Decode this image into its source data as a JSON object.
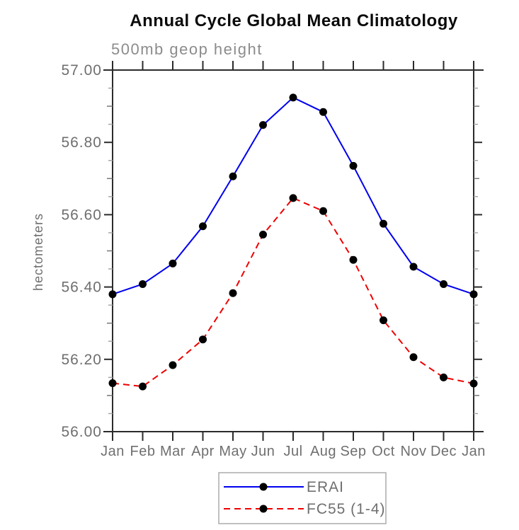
{
  "chart_data": {
    "type": "line",
    "title": "Annual Cycle Global Mean Climatology",
    "subtitle": "500mb geop height",
    "ylabel": "hectometers",
    "xlabel": "",
    "x_tick_labels": [
      "Jan",
      "Feb",
      "Mar",
      "Apr",
      "May",
      "Jun",
      "Jul",
      "Aug",
      "Sep",
      "Oct",
      "Nov",
      "Dec",
      "Jan"
    ],
    "y_ticks": [
      56.0,
      56.2,
      56.4,
      56.6,
      56.8,
      57.0
    ],
    "y_tick_labels": [
      "56.00",
      "56.20",
      "56.40",
      "56.60",
      "56.80",
      "57.00"
    ],
    "ylim": [
      56.0,
      57.0
    ],
    "y_minor_step": 0.05,
    "grid": false,
    "legend_position": "bottom-center",
    "axis_color": "#2b2b2b",
    "minor_tick_color": "#a6a6a6",
    "mid_minor_tick_color": "#777777",
    "legend_border_color": "#ababab",
    "series": [
      {
        "name": "ERAI",
        "color": "#0000ee",
        "style": "solid",
        "marker": "circle",
        "marker_color": "#000000",
        "values": [
          56.38,
          56.408,
          56.465,
          56.568,
          56.706,
          56.848,
          56.924,
          56.884,
          56.735,
          56.575,
          56.456,
          56.408,
          56.38
        ]
      },
      {
        "name": "FC55 (1-4)",
        "color": "#ee0000",
        "style": "dashed",
        "marker": "circle",
        "marker_color": "#000000",
        "values": [
          56.134,
          56.125,
          56.184,
          56.255,
          56.383,
          56.545,
          56.646,
          56.61,
          56.475,
          56.308,
          56.206,
          56.15,
          56.133
        ]
      }
    ]
  }
}
